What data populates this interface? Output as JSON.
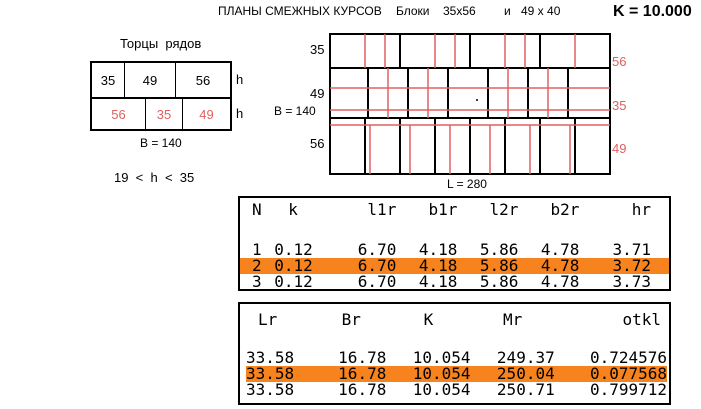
{
  "header": {
    "title": "ПЛАНЫ СМЕЖНЫХ КУРСОВ",
    "blocks_label": "Блоки",
    "block1": "35x56",
    "and": "и",
    "block2": "49 x 40",
    "k_value": "K = 10.000"
  },
  "left_panel": {
    "title": "Торцы  рядов",
    "row1": [
      "35",
      "49",
      "56"
    ],
    "row2": [
      "56",
      "35",
      "49"
    ],
    "h_label": "h",
    "b_label": "B = 140",
    "range": "19  <  h  <  35"
  },
  "plan": {
    "left_labels": [
      "35",
      "49",
      "56"
    ],
    "right_labels": [
      "56",
      "35",
      "49"
    ],
    "b_label": "B = 140",
    "l_label": "L = 280"
  },
  "table1": {
    "headers": [
      "N",
      "k",
      "l1r",
      "b1r",
      "l2r",
      "b2r",
      "hr"
    ],
    "rows": [
      [
        "1",
        "0.12",
        "6.70",
        "4.18",
        "5.86",
        "4.78",
        "3.71"
      ],
      [
        "2",
        "0.12",
        "6.70",
        "4.18",
        "5.86",
        "4.78",
        "3.72"
      ],
      [
        "3",
        "0.12",
        "6.70",
        "4.18",
        "5.86",
        "4.78",
        "3.73"
      ]
    ],
    "highlight_row": 2
  },
  "table2": {
    "headers": [
      "Lr",
      "Br",
      "K",
      "Mr",
      "otkl"
    ],
    "rows": [
      [
        "33.58",
        "16.78",
        "10.054",
        "249.37",
        "0.724576"
      ],
      [
        "33.58",
        "16.78",
        "10.054",
        "250.04",
        "0.077568"
      ],
      [
        "33.58",
        "16.78",
        "10.054",
        "250.71",
        "0.799712"
      ]
    ],
    "highlight_row": 2
  },
  "colors": {
    "highlight": "#f7831f",
    "red_lines": "#e06060"
  }
}
